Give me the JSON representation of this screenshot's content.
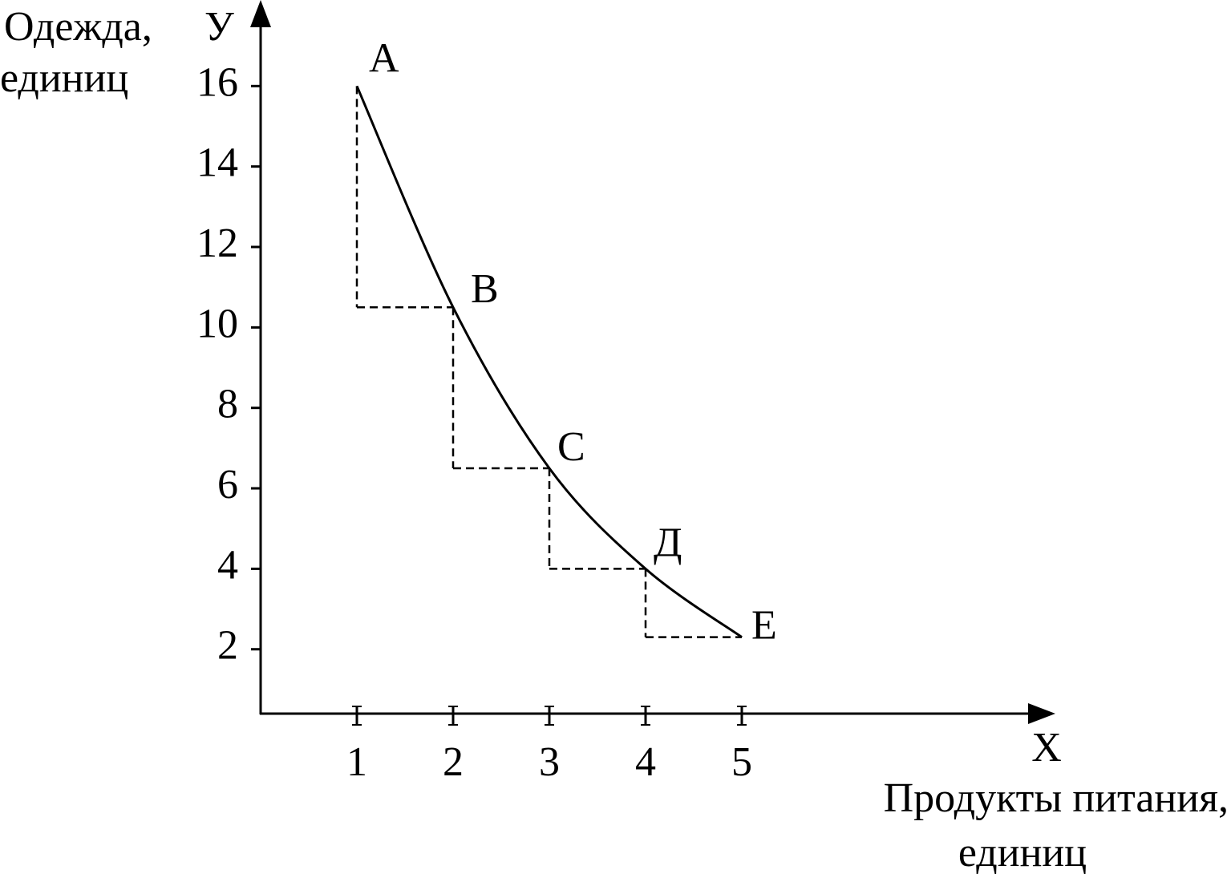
{
  "chart_data": {
    "type": "line",
    "ylabel_lines": [
      "Одежда,",
      "единиц"
    ],
    "y_axis_letter": "У",
    "x_axis_letter": "X",
    "xlabel_lines": [
      "Продукты питания,",
      "единиц"
    ],
    "x": [
      1,
      2,
      3,
      4,
      5
    ],
    "point_labels": [
      "A",
      "B",
      "C",
      "Д",
      "E"
    ],
    "series": [
      {
        "color": "#000000",
        "values": [
          16,
          10.5,
          6.5,
          4,
          2.3
        ]
      }
    ],
    "xlim": [
      0,
      8.2
    ],
    "ylim": [
      0.4,
      17.9
    ],
    "xticks": [
      1,
      2,
      3,
      4,
      5
    ],
    "yticks": [
      2,
      4,
      6,
      8,
      10,
      12,
      14,
      16
    ]
  }
}
